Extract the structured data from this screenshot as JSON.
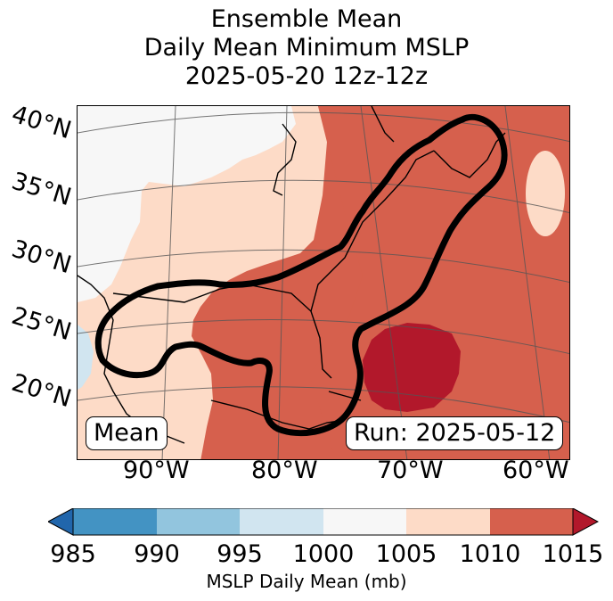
{
  "title": {
    "line1": "Ensemble Mean",
    "line2": "Daily Mean Minimum MSLP",
    "line3": "2025-05-20 12z-12z"
  },
  "map": {
    "lat_labels": [
      "40°N",
      "35°N",
      "30°N",
      "25°N",
      "20°N"
    ],
    "lon_labels": [
      "90°W",
      "80°W",
      "70°W",
      "60°W"
    ],
    "mean_label": "Mean",
    "run_label": "Run: 2025-05-12"
  },
  "colorbar": {
    "ticks": [
      "985",
      "990",
      "995",
      "1000",
      "1005",
      "1010",
      "1015"
    ],
    "label": "MSLP Daily Mean (mb)",
    "colors": [
      "#2166ac",
      "#4393c3",
      "#92c5de",
      "#d1e5f0",
      "#f7f7f7",
      "#fddbc7",
      "#d6604d",
      "#b2182b"
    ]
  }
}
